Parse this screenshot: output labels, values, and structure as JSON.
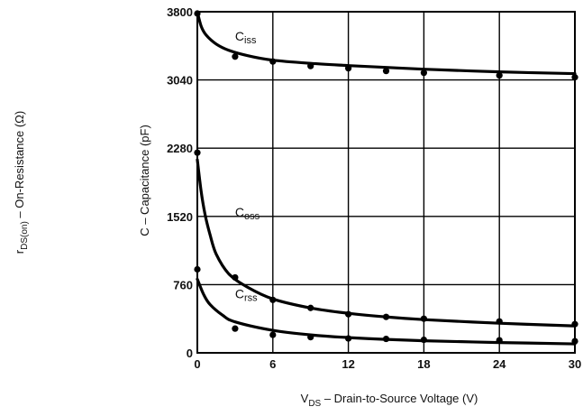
{
  "chart_data": {
    "type": "line",
    "xlabel_main": "V",
    "xlabel_sub": "DS",
    "xlabel_rest": " – Drain-to-Source Voltage (V)",
    "ylabel": "C – Capacitance (pF)",
    "ylabel2_main": "r",
    "ylabel2_sub": "DS(on)",
    "ylabel2_rest": " – On-Resistance (Ω)",
    "xlim": [
      0,
      30
    ],
    "ylim": [
      0,
      3800
    ],
    "xticks": [
      0,
      6,
      12,
      18,
      24,
      30
    ],
    "yticks": [
      0,
      760,
      1520,
      2280,
      3040,
      3800
    ],
    "grid": true,
    "series": [
      {
        "name_main": "C",
        "name_sub": "iss",
        "curve": [
          [
            0,
            3800
          ],
          [
            0.3,
            3640
          ],
          [
            0.7,
            3540
          ],
          [
            1.5,
            3440
          ],
          [
            2.5,
            3370
          ],
          [
            4,
            3310
          ],
          [
            6,
            3260
          ],
          [
            9,
            3225
          ],
          [
            12,
            3200
          ],
          [
            15,
            3180
          ],
          [
            18,
            3160
          ],
          [
            24,
            3130
          ],
          [
            30,
            3110
          ]
        ],
        "points": [
          [
            0,
            3780
          ],
          [
            3,
            3300
          ],
          [
            6,
            3245
          ],
          [
            9,
            3195
          ],
          [
            12,
            3170
          ],
          [
            15,
            3140
          ],
          [
            18,
            3120
          ],
          [
            24,
            3090
          ],
          [
            30,
            3070
          ]
        ]
      },
      {
        "name_main": "C",
        "name_sub": "oss",
        "curve": [
          [
            0,
            2150
          ],
          [
            0.3,
            1800
          ],
          [
            0.6,
            1550
          ],
          [
            1,
            1320
          ],
          [
            1.5,
            1100
          ],
          [
            2.5,
            880
          ],
          [
            4,
            730
          ],
          [
            6,
            600
          ],
          [
            9,
            500
          ],
          [
            12,
            440
          ],
          [
            15,
            400
          ],
          [
            18,
            370
          ],
          [
            24,
            330
          ],
          [
            30,
            300
          ]
        ],
        "points": [
          [
            0,
            2230
          ],
          [
            0,
            930
          ],
          [
            3,
            840
          ],
          [
            6,
            590
          ],
          [
            9,
            500
          ],
          [
            12,
            430
          ],
          [
            15,
            400
          ],
          [
            18,
            380
          ],
          [
            24,
            350
          ],
          [
            30,
            320
          ]
        ]
      },
      {
        "name_main": "C",
        "name_sub": "rss",
        "curve": [
          [
            0,
            820
          ],
          [
            0.5,
            650
          ],
          [
            1,
            540
          ],
          [
            2,
            420
          ],
          [
            3,
            345
          ],
          [
            6,
            250
          ],
          [
            9,
            200
          ],
          [
            12,
            170
          ],
          [
            15,
            150
          ],
          [
            18,
            135
          ],
          [
            24,
            115
          ],
          [
            30,
            100
          ]
        ],
        "points": [
          [
            3,
            270
          ],
          [
            6,
            200
          ],
          [
            9,
            175
          ],
          [
            12,
            160
          ],
          [
            15,
            155
          ],
          [
            18,
            145
          ],
          [
            24,
            140
          ],
          [
            30,
            130
          ]
        ]
      }
    ]
  }
}
